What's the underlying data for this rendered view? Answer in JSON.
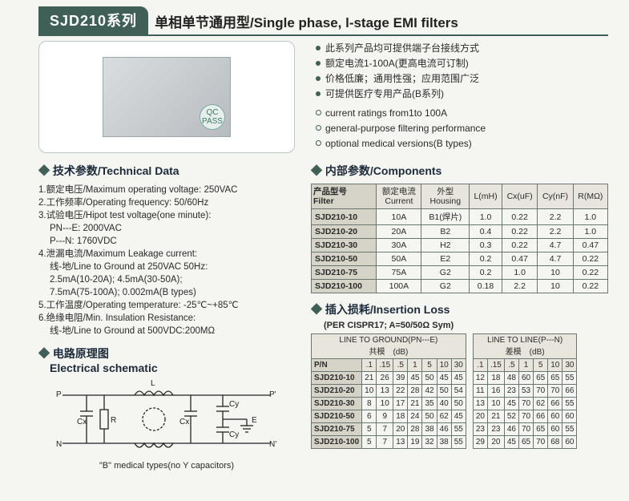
{
  "header": {
    "series": "SJD210系列",
    "title": "单相单节通用型/Single phase, l-stage EMI filters"
  },
  "features_cn": [
    "此系列产品均可提供端子台接线方式",
    "额定电流1-100A(更高电流可订制)",
    "价格低廉；通用性强；应用范围广泛",
    "可提供医疗专用产品(B系列)"
  ],
  "features_en": [
    "current ratings from1to 100A",
    "general-purpose filtering performance",
    "optional medical versions(B types)"
  ],
  "sections": {
    "tech_title": "技术参数/Technical Data",
    "components_title": "内部参数/Components",
    "schematic_title1": "电路原理图",
    "schematic_title2": "Electrical schematic",
    "schematic_note": "\"B\" medical types(no Y capacitors)",
    "loss_title": "插入损耗/Insertion Loss",
    "loss_sub": "(PER CISPR17; A=50/50Ω Sym)"
  },
  "tech": [
    "1.额定电压/Maximum operating voltage: 250VAC",
    "2.工作频率/Operating frequency: 50/60Hz",
    "3.试验电压/Hipot test voltage(one minute):",
    "   PN---E: 2000VAC",
    "   P---N: 1760VDC",
    "4.泄漏电流/Maximum Leakage current:",
    "   线-地/Line to Ground at 250VAC 50Hz:",
    "   2.5mA(10-20A); 4.5mA(30-50A);",
    "   7.5mA(75-100A); 0.002mA(B types)",
    "5.工作温度/Operating temperature: -25℃~+85℃",
    "6.绝缘电阻/Min. Insulation Resistance:",
    "   线-地/Line to Ground at 500VDC:200MΩ"
  ],
  "tech_indent": [
    false,
    false,
    false,
    true,
    true,
    false,
    true,
    true,
    true,
    false,
    false,
    true
  ],
  "comp_headers": [
    "产品型号\nFilter",
    "额定电流\nCurrent",
    "外型\nHousing",
    "L(mH)",
    "Cx(uF)",
    "Cy(nF)",
    "R(MΩ)"
  ],
  "comp_rows": [
    [
      "SJD210-10",
      "10A",
      "B1(焊片)",
      "1.0",
      "0.22",
      "2.2",
      "1.0"
    ],
    [
      "SJD210-20",
      "20A",
      "B2",
      "0.4",
      "0.22",
      "2.2",
      "1.0"
    ],
    [
      "SJD210-30",
      "30A",
      "H2",
      "0.3",
      "0.22",
      "4.7",
      "0.47"
    ],
    [
      "SJD210-50",
      "50A",
      "E2",
      "0.2",
      "0.47",
      "4.7",
      "0.22"
    ],
    [
      "SJD210-75",
      "75A",
      "G2",
      "0.2",
      "1.0",
      "10",
      "0.22"
    ],
    [
      "SJD210-100",
      "100A",
      "G2",
      "0.18",
      "2.2",
      "10",
      "0.22"
    ]
  ],
  "loss": {
    "group1_title": "LINE TO GROUND(PN---E)\n共模　(dB)",
    "group2_title": "LINE TO LINE(P---N)\n差模　(dB)",
    "freq_cols": [
      ".1",
      ".15",
      ".5",
      "1",
      "5",
      "10",
      "30"
    ],
    "pn_label": "P/N",
    "rows": [
      {
        "pn": "SJD210-10",
        "g": [
          21,
          26,
          39,
          45,
          50,
          45,
          45
        ],
        "l": [
          12,
          18,
          48,
          60,
          65,
          65,
          55
        ]
      },
      {
        "pn": "SJD210-20",
        "g": [
          10,
          13,
          22,
          28,
          42,
          50,
          54
        ],
        "l": [
          11,
          16,
          23,
          53,
          70,
          70,
          66
        ]
      },
      {
        "pn": "SJD210-30",
        "g": [
          8,
          10,
          17,
          21,
          35,
          40,
          50
        ],
        "l": [
          13,
          10,
          45,
          70,
          62,
          66,
          55
        ]
      },
      {
        "pn": "SJD210-50",
        "g": [
          6,
          9,
          18,
          24,
          50,
          62,
          45
        ],
        "l": [
          20,
          21,
          52,
          70,
          66,
          60,
          60
        ]
      },
      {
        "pn": "SJD210-75",
        "g": [
          5,
          7,
          20,
          28,
          38,
          46,
          55
        ],
        "l": [
          23,
          23,
          46,
          70,
          65,
          60,
          55
        ]
      },
      {
        "pn": "SJD210-100",
        "g": [
          5,
          7,
          13,
          19,
          32,
          38,
          55
        ],
        "l": [
          29,
          20,
          45,
          65,
          70,
          68,
          60
        ]
      }
    ]
  },
  "schematic_labels": {
    "P": "P",
    "N": "N",
    "Pp": "P'",
    "Np": "N'",
    "L": "L",
    "R": "R",
    "Cx": "Cx",
    "Cy": "Cy",
    "E": "E"
  }
}
